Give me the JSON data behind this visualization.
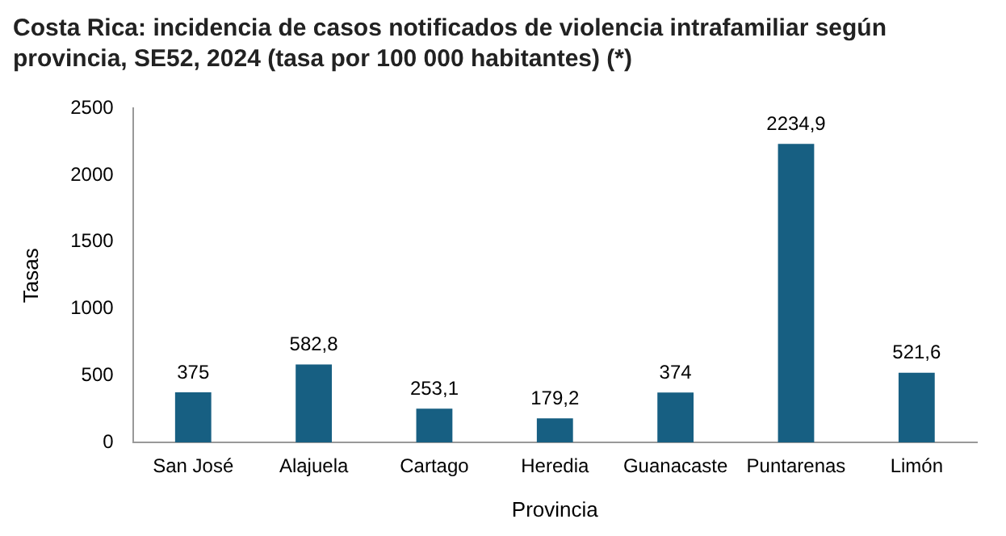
{
  "chart_data": {
    "type": "bar",
    "title": "Costa Rica: incidencia de casos notificados de violencia intrafamiliar según provincia, SE52, 2024 (tasa por 100 000 habitantes) (*)",
    "xlabel": "Provincia",
    "ylabel": "Tasas",
    "categories": [
      "San José",
      "Alajuela",
      "Cartago",
      "Heredia",
      "Guanacaste",
      "Puntarenas",
      "Limón"
    ],
    "values": [
      375,
      582.8,
      253.1,
      179.2,
      374,
      2234.9,
      521.6
    ],
    "value_labels": [
      "375",
      "582,8",
      "253,1",
      "179,2",
      "374",
      "2234,9",
      "521,6"
    ],
    "color": "#175f82",
    "ylim": [
      0,
      2500
    ],
    "yticks": [
      0,
      500,
      1000,
      1500,
      2000,
      2500
    ],
    "grid": false,
    "legend": false
  }
}
